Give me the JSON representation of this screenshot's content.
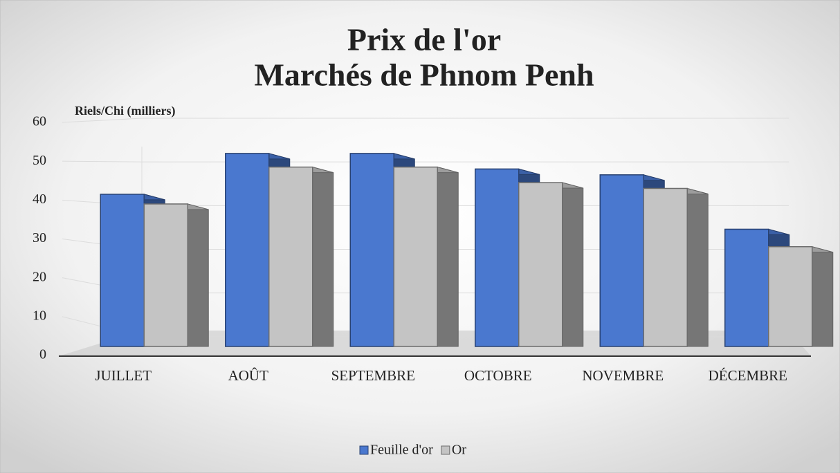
{
  "chart_data": {
    "type": "bar3d",
    "title": [
      "Prix de l'or",
      "Marchés de Phnom Penh"
    ],
    "y_label": "Riels/Chi (milliers)",
    "categories": [
      "JUILLET",
      "AOÛT",
      "SEPTEMBRE",
      "OCTOBRE",
      "NOVEMBRE",
      "DÉCEMBRE"
    ],
    "series": [
      {
        "name": "Feuille d'or",
        "color": "#4a78cf",
        "values": [
          41.5,
          52,
          52,
          48,
          46.5,
          32.5
        ]
      },
      {
        "name": "Or",
        "color": "#c4c4c4",
        "values": [
          39,
          48.5,
          48.5,
          44.5,
          43,
          28
        ]
      }
    ],
    "ylim": [
      0,
      60
    ],
    "yticks": [
      0,
      10,
      20,
      30,
      40,
      50,
      60
    ],
    "grid": true
  }
}
